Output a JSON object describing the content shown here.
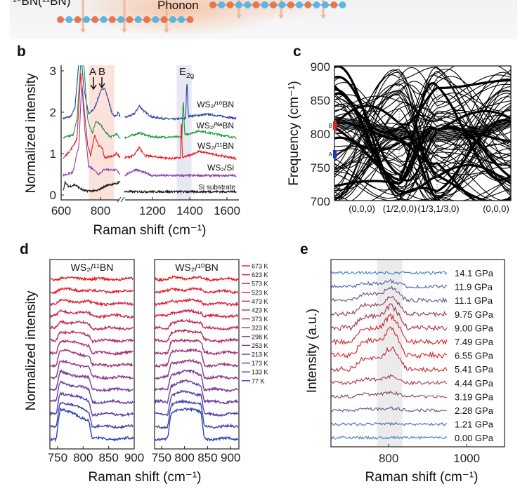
{
  "top": {
    "left_label": "¹⁰BN(¹¹BN)",
    "phonon_label": "Phonon",
    "atom_colors": {
      "boron": "#e8714a",
      "nitrogen": "#55b3df"
    }
  },
  "panels": {
    "b": "b",
    "c": "c",
    "d": "d",
    "e": "e"
  },
  "chart_data": [
    {
      "id": "b",
      "type": "line",
      "xlabel": "Raman shift (cm⁻¹)",
      "ylabel": "Normalized intensity",
      "xlim": [
        600,
        1650
      ],
      "axis_break": [
        900,
        1050
      ],
      "ylim": [
        0,
        3.1
      ],
      "xticks": [
        "600",
        "800",
        "1200",
        "1400",
        "1600"
      ],
      "yticks": [
        "0",
        "1",
        "2",
        "3"
      ],
      "annotations": {
        "A": "A",
        "B": "B",
        "E_base": "E",
        "E_sub": "2g"
      },
      "shaded_regions": [
        {
          "range": [
            740,
            870
          ],
          "color": "#fbe3dc"
        },
        {
          "range": [
            1330,
            1410
          ],
          "color": "#e6e8f4"
        }
      ],
      "series": [
        {
          "name": "WS₂/¹⁰BN",
          "color": "#2c3fa8",
          "points": [
            [
              610,
              1.85
            ],
            [
              650,
              1.9
            ],
            [
              670,
              2.1
            ],
            [
              690,
              3.2
            ],
            [
              705,
              3.2
            ],
            [
              715,
              2.6
            ],
            [
              740,
              1.95
            ],
            [
              770,
              2.1
            ],
            [
              800,
              2.5
            ],
            [
              820,
              2.6
            ],
            [
              840,
              2.3
            ],
            [
              860,
              1.95
            ],
            [
              880,
              1.9
            ],
            [
              890,
              2.0
            ],
            [
              900,
              1.88
            ],
            [
              1050,
              1.87
            ],
            [
              1100,
              1.95
            ],
            [
              1130,
              2.15
            ],
            [
              1160,
              2.0
            ],
            [
              1200,
              1.88
            ],
            [
              1300,
              1.83
            ],
            [
              1378,
              1.85
            ],
            [
              1385,
              2.8
            ],
            [
              1393,
              1.9
            ],
            [
              1500,
              1.95
            ],
            [
              1650,
              1.85
            ]
          ]
        },
        {
          "name": "WS₂/ᴺᵃBN",
          "color": "#1e9640",
          "points": [
            [
              610,
              1.38
            ],
            [
              660,
              1.45
            ],
            [
              680,
              1.8
            ],
            [
              700,
              3.2
            ],
            [
              715,
              3.2
            ],
            [
              735,
              1.8
            ],
            [
              760,
              1.5
            ],
            [
              775,
              1.78
            ],
            [
              800,
              1.7
            ],
            [
              820,
              1.55
            ],
            [
              850,
              1.4
            ],
            [
              880,
              1.47
            ],
            [
              900,
              1.38
            ],
            [
              1050,
              1.38
            ],
            [
              1130,
              1.5
            ],
            [
              1200,
              1.4
            ],
            [
              1358,
              1.4
            ],
            [
              1365,
              2.35
            ],
            [
              1373,
              1.45
            ],
            [
              1450,
              1.55
            ],
            [
              1650,
              1.38
            ]
          ]
        },
        {
          "name": "WS₂/¹¹BN",
          "color": "#e8201e",
          "points": [
            [
              610,
              0.88
            ],
            [
              650,
              1.1
            ],
            [
              680,
              1.35
            ],
            [
              700,
              2.95
            ],
            [
              715,
              2.2
            ],
            [
              735,
              1.2
            ],
            [
              750,
              0.95
            ],
            [
              770,
              1.45
            ],
            [
              790,
              1.2
            ],
            [
              810,
              1.12
            ],
            [
              820,
              0.9
            ],
            [
              870,
              0.95
            ],
            [
              880,
              1.02
            ],
            [
              900,
              0.9
            ],
            [
              1050,
              0.9
            ],
            [
              1100,
              0.95
            ],
            [
              1130,
              1.15
            ],
            [
              1160,
              0.95
            ],
            [
              1300,
              0.88
            ],
            [
              1350,
              0.9
            ],
            [
              1355,
              1.85
            ],
            [
              1361,
              0.9
            ],
            [
              1450,
              1.05
            ],
            [
              1650,
              0.88
            ]
          ]
        },
        {
          "name": "WS₂/Si",
          "color": "#8a3fa8",
          "points": [
            [
              610,
              0.47
            ],
            [
              660,
              0.55
            ],
            [
              690,
              1.2
            ],
            [
              705,
              2.7
            ],
            [
              720,
              1.6
            ],
            [
              740,
              0.7
            ],
            [
              770,
              0.6
            ],
            [
              790,
              0.5
            ],
            [
              820,
              0.62
            ],
            [
              880,
              0.6
            ],
            [
              900,
              0.5
            ],
            [
              1050,
              0.47
            ],
            [
              1110,
              0.62
            ],
            [
              1150,
              0.55
            ],
            [
              1200,
              0.47
            ],
            [
              1650,
              0.47
            ]
          ]
        },
        {
          "name": "Si substrate",
          "color": "#111111",
          "points": [
            [
              610,
              0.1
            ],
            [
              620,
              0.3
            ],
            [
              640,
              0.2
            ],
            [
              670,
              0.25
            ],
            [
              700,
              0.15
            ],
            [
              720,
              0.1
            ],
            [
              780,
              0.1
            ],
            [
              840,
              0.25
            ],
            [
              880,
              0.27
            ],
            [
              900,
              0.33
            ],
            [
              1050,
              0.08
            ],
            [
              1650,
              0.08
            ]
          ]
        }
      ]
    },
    {
      "id": "c",
      "type": "line",
      "ylabel": "Frequency (cm⁻¹)",
      "ylim": [
        700,
        900
      ],
      "yticks": [
        "700",
        "750",
        "800",
        "850",
        "900"
      ],
      "xticks": [
        "(0,0,0)",
        "(1/2,0,0)",
        "(1/3,1/3,0)",
        "(0,0,0)"
      ],
      "markers": [
        {
          "label": "B",
          "range": [
            805,
            818
          ],
          "color": "#e8201e"
        },
        {
          "label": "A",
          "range": [
            763,
            775
          ],
          "color": "#1e2fe0"
        }
      ]
    },
    {
      "id": "d",
      "type": "line",
      "xlabel": "Raman shift (cm⁻¹)",
      "ylabel": "Normalized intensity",
      "xticks": [
        "750",
        "800",
        "850",
        "900"
      ],
      "subplots": [
        {
          "title": "WS₂/¹¹BN",
          "xlim": [
            735,
            900
          ],
          "peak_range": [
            752,
            815
          ]
        },
        {
          "title": "WS₂/¹⁰BN",
          "xlim": [
            735,
            918
          ],
          "peak_range": [
            768,
            840
          ]
        }
      ],
      "legend_position": "right",
      "series": [
        {
          "name": "673 K",
          "color": "#f01818",
          "peak": 0.05
        },
        {
          "name": "623 K",
          "color": "#e61c2a",
          "peak": 0.08
        },
        {
          "name": "573 K",
          "color": "#dc2036",
          "peak": 0.12
        },
        {
          "name": "523 K",
          "color": "#d02444",
          "peak": 0.18
        },
        {
          "name": "473 K",
          "color": "#c42852",
          "peak": 0.28
        },
        {
          "name": "423 K",
          "color": "#b82c60",
          "peak": 0.38
        },
        {
          "name": "373 K",
          "color": "#aa3070",
          "peak": 0.5
        },
        {
          "name": "323 K",
          "color": "#9a347e",
          "peak": 0.6
        },
        {
          "name": "298 K",
          "color": "#8a388c",
          "peak": 0.65
        },
        {
          "name": "253 K",
          "color": "#7a3a96",
          "peak": 0.72
        },
        {
          "name": "213 K",
          "color": "#6a3c9e",
          "peak": 0.8
        },
        {
          "name": "173 K",
          "color": "#563ea6",
          "peak": 0.88
        },
        {
          "name": "133 K",
          "color": "#4240ae",
          "peak": 1.0
        },
        {
          "name": "77 K",
          "color": "#2c42b8",
          "peak": 1.2
        }
      ]
    },
    {
      "id": "e",
      "type": "line",
      "xlabel": "Raman shift (cm⁻¹)",
      "ylabel": "Intensity (a.u.)",
      "xlim": [
        652,
        1097
      ],
      "xticks": [
        "800",
        "1000"
      ],
      "shaded_region": {
        "range": [
          770,
          835
        ],
        "color": "#ebebeb"
      },
      "series": [
        {
          "name": "14.1 GPa",
          "color": "#3a7fc4",
          "peak": 0.0
        },
        {
          "name": "11.9 GPa",
          "color": "#4a62a6",
          "peak": 0.25
        },
        {
          "name": "11.1 GPa",
          "color": "#6a4f88",
          "peak": 0.55
        },
        {
          "name": "9.75 GPa",
          "color": "#8a3f68",
          "peak": 0.75
        },
        {
          "name": "9.00 GPa",
          "color": "#a63050",
          "peak": 1.0
        },
        {
          "name": "7.49 GPa",
          "color": "#cc2832",
          "peak": 1.15
        },
        {
          "name": "6.55 GPa",
          "color": "#e81c24",
          "peak": 1.2
        },
        {
          "name": "5.41 GPa",
          "color": "#c42838",
          "peak": 0.95
        },
        {
          "name": "4.44 GPa",
          "color": "#a2384e",
          "peak": 0.3
        },
        {
          "name": "3.19 GPa",
          "color": "#86406a",
          "peak": 0.2
        },
        {
          "name": "2.28 GPa",
          "color": "#6a4f88",
          "peak": 0.1
        },
        {
          "name": "1.21 GPa",
          "color": "#4a62a6",
          "peak": 0.0
        },
        {
          "name": "0.00 GPa",
          "color": "#3a7fc4",
          "peak": 0.0
        }
      ]
    }
  ]
}
